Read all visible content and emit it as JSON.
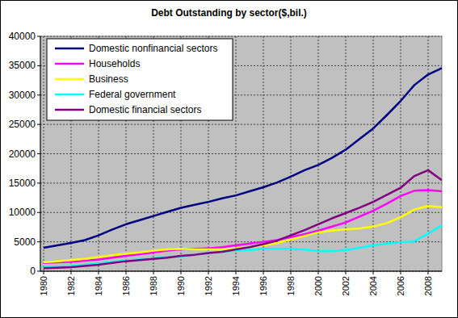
{
  "chart_data": {
    "type": "line",
    "title": "Debt Outstanding by sector($,bil.)",
    "x": [
      1980,
      1981,
      1982,
      1983,
      1984,
      1985,
      1986,
      1987,
      1988,
      1989,
      1990,
      1991,
      1992,
      1993,
      1994,
      1995,
      1996,
      1997,
      1998,
      1999,
      2000,
      2001,
      2002,
      2003,
      2004,
      2005,
      2006,
      2007,
      2008,
      2009
    ],
    "xlim": [
      1980,
      2009
    ],
    "xticks": [
      1980,
      1982,
      1984,
      1986,
      1988,
      1990,
      1992,
      1994,
      1996,
      1998,
      2000,
      2002,
      2004,
      2006,
      2008
    ],
    "ylim": [
      0,
      40000
    ],
    "yticks": [
      0,
      5000,
      10000,
      15000,
      20000,
      25000,
      30000,
      35000,
      40000
    ],
    "grid": true,
    "legend": "top-left",
    "series": [
      {
        "name": "Domestic nonfinancial sectors",
        "color": "#000080",
        "values": [
          4000,
          4400,
          4800,
          5300,
          6100,
          7100,
          8000,
          8700,
          9400,
          10100,
          10800,
          11300,
          11800,
          12400,
          12900,
          13600,
          14300,
          15100,
          16100,
          17200,
          18100,
          19300,
          20700,
          22500,
          24300,
          26600,
          29000,
          31700,
          33500,
          34600
        ]
      },
      {
        "name": "Households",
        "color": "#ff00ff",
        "values": [
          1400,
          1500,
          1600,
          1800,
          2000,
          2300,
          2600,
          2900,
          3200,
          3500,
          3700,
          3800,
          3900,
          4100,
          4400,
          4700,
          5000,
          5300,
          5800,
          6300,
          6900,
          7600,
          8300,
          9300,
          10300,
          11500,
          12800,
          13700,
          13800,
          13600
        ]
      },
      {
        "name": "Business",
        "color": "#ffff00",
        "values": [
          1500,
          1700,
          1900,
          2100,
          2400,
          2700,
          3000,
          3200,
          3500,
          3700,
          3800,
          3700,
          3700,
          3700,
          3900,
          4100,
          4400,
          4800,
          5400,
          6000,
          6600,
          6900,
          7100,
          7300,
          7600,
          8200,
          9200,
          10500,
          11100,
          10900
        ]
      },
      {
        "name": "Federal government",
        "color": "#00ffff",
        "values": [
          700,
          800,
          900,
          1100,
          1300,
          1600,
          1800,
          2000,
          2200,
          2400,
          2500,
          2800,
          3100,
          3300,
          3500,
          3600,
          3800,
          3800,
          3800,
          3700,
          3400,
          3400,
          3600,
          4000,
          4400,
          4700,
          4900,
          5100,
          6400,
          7800
        ]
      },
      {
        "name": "Domestic financial sectors",
        "color": "#800080",
        "values": [
          500,
          600,
          700,
          900,
          1100,
          1400,
          1700,
          1900,
          2100,
          2300,
          2600,
          2800,
          3100,
          3300,
          3700,
          4100,
          4600,
          5200,
          6100,
          7000,
          8000,
          9000,
          9900,
          10800,
          11800,
          13000,
          14200,
          16200,
          17200,
          15500
        ]
      }
    ]
  }
}
